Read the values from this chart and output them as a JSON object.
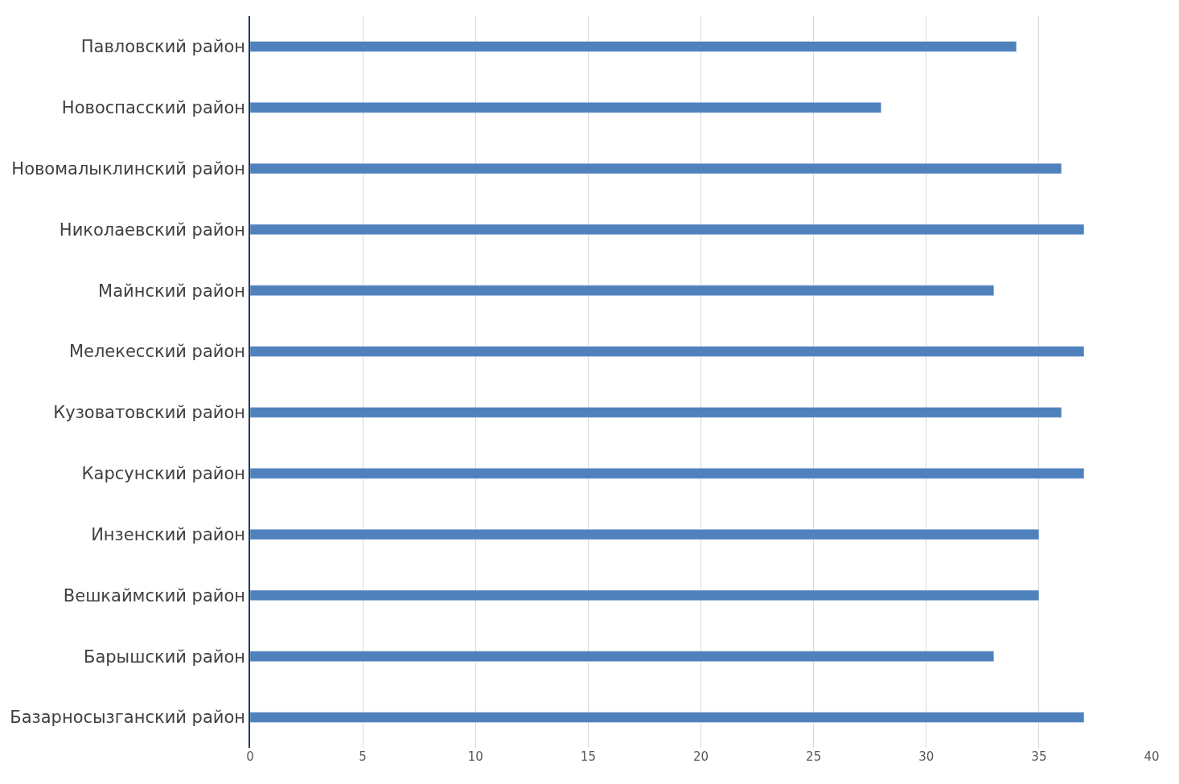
{
  "chart_data": {
    "type": "bar",
    "orientation": "horizontal",
    "categories": [
      "Павловский район",
      "Новоспасский район",
      "Новомалыклинский район",
      "Николаевский район",
      "Майнский район",
      "Мелекесский район",
      "Кузоватовский район",
      "Карсунский район",
      "Инзенский район",
      "Вешкаймский район",
      "Барышский район",
      "Базарносызганский район"
    ],
    "values": [
      34,
      28,
      36,
      37,
      33,
      37,
      36,
      37,
      35,
      35,
      33,
      37
    ],
    "color": "#4f81bd",
    "xlim": [
      0,
      40
    ],
    "xticks": [
      0,
      5,
      10,
      15,
      20,
      25,
      30,
      35,
      40
    ],
    "grid": "x",
    "legend": false
  }
}
